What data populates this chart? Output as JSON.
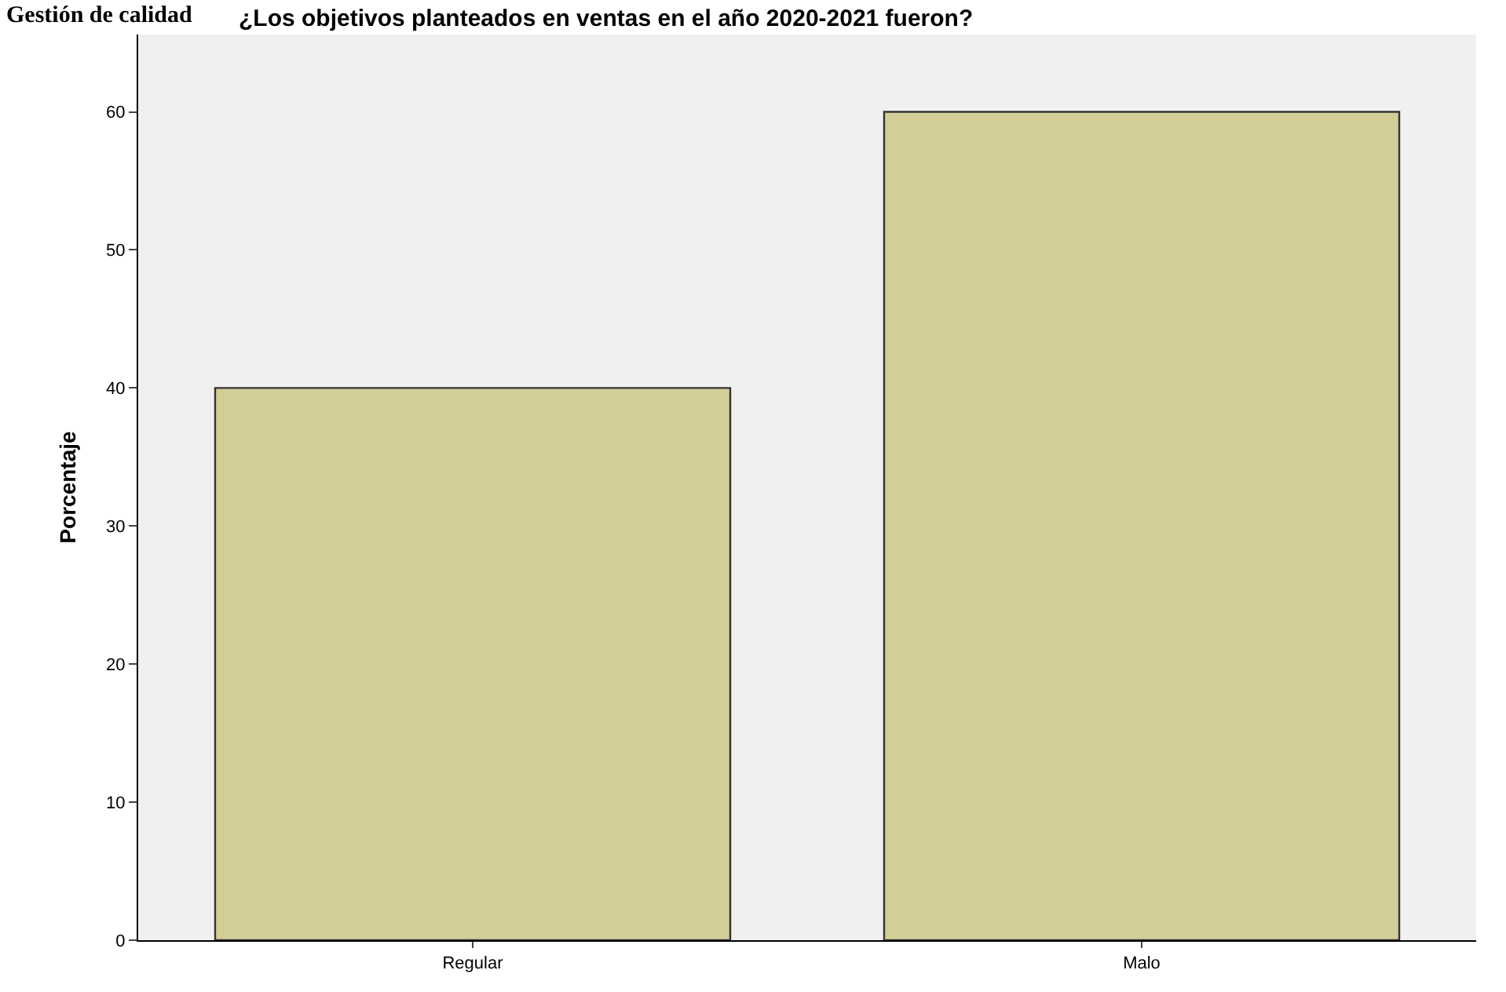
{
  "chart_data": {
    "type": "bar",
    "title": "¿Los objetivos planteados en ventas en el año 2020-2021 fueron?",
    "ylabel": "Porcentaje",
    "annotations": [
      "Gestión de calidad"
    ],
    "categories": [
      "Regular",
      "Malo"
    ],
    "values": [
      40,
      60
    ],
    "color": "#d3ce98",
    "ylim": [
      0,
      65.6
    ],
    "yticks": [
      0,
      10,
      20,
      30,
      40,
      50,
      60
    ],
    "grid": false
  }
}
